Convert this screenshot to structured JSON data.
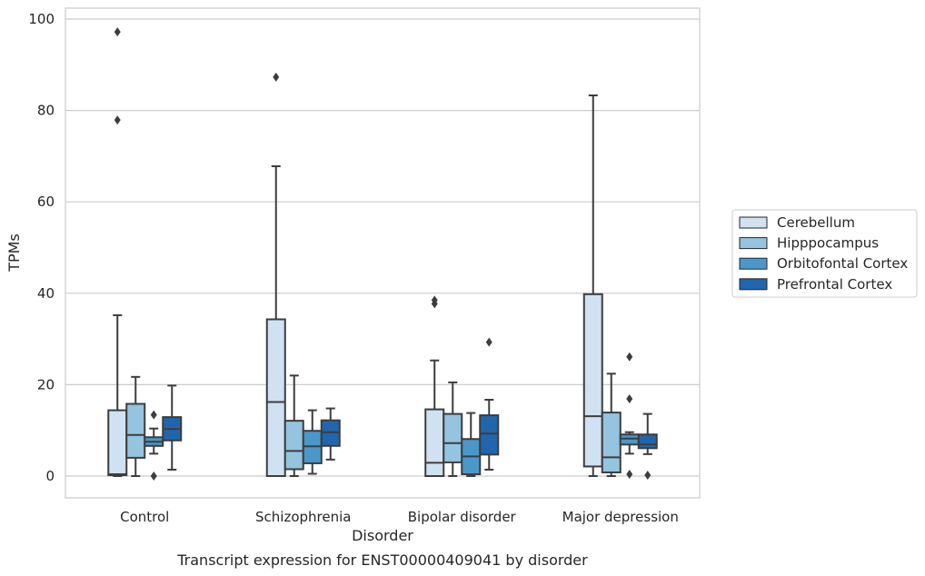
{
  "chart_data": {
    "type": "box",
    "xlabel": "Disorder",
    "ylabel": "TPMs",
    "caption": "Transcript expression for ENST00000409041 by disorder",
    "ylim": [
      -4.5,
      102
    ],
    "yticks": [
      0,
      20,
      40,
      60,
      80,
      100
    ],
    "grid": "horizontal",
    "legend_position": "center-right",
    "categories": [
      "Control",
      "Schizophrenia",
      "Bipolar disorder",
      "Major depression"
    ],
    "series": [
      {
        "name": "Cerebellum",
        "color": "#d0e1f2",
        "boxes": [
          {
            "whislo": 0,
            "q1": 0.2,
            "med": 0.4,
            "q3": 14.4,
            "whishi": 35.2,
            "fliers": [
              77.9,
              97.2
            ]
          },
          {
            "whislo": 0,
            "q1": 0,
            "med": 16.2,
            "q3": 34.3,
            "whishi": 67.8,
            "fliers": [
              87.3
            ]
          },
          {
            "whislo": 0,
            "q1": 0,
            "med": 2.9,
            "q3": 14.6,
            "whishi": 25.3,
            "fliers": [
              37.7,
              38.5
            ]
          },
          {
            "whislo": 0,
            "q1": 2.1,
            "med": 13.1,
            "q3": 39.8,
            "whishi": 83.3,
            "fliers": []
          }
        ]
      },
      {
        "name": "Hipppocampus",
        "color": "#94c4df",
        "boxes": [
          {
            "whislo": 0,
            "q1": 4.0,
            "med": 9.0,
            "q3": 15.8,
            "whishi": 21.7,
            "fliers": []
          },
          {
            "whislo": 0,
            "q1": 1.5,
            "med": 5.5,
            "q3": 12.1,
            "whishi": 22.0,
            "fliers": []
          },
          {
            "whislo": 0,
            "q1": 3.0,
            "med": 7.2,
            "q3": 13.6,
            "whishi": 20.5,
            "fliers": []
          },
          {
            "whislo": 0,
            "q1": 0.8,
            "med": 4.1,
            "q3": 13.9,
            "whishi": 22.4,
            "fliers": []
          }
        ]
      },
      {
        "name": "Orbitofontal Cortex",
        "color": "#4a98c9",
        "boxes": [
          {
            "whislo": 4.9,
            "q1": 6.6,
            "med": 7.5,
            "q3": 8.5,
            "whishi": 10.4,
            "fliers": [
              0,
              13.4
            ]
          },
          {
            "whislo": 0.5,
            "q1": 2.8,
            "med": 6.5,
            "q3": 9.9,
            "whishi": 14.4,
            "fliers": []
          },
          {
            "whislo": 0,
            "q1": 0.4,
            "med": 4.3,
            "q3": 8.1,
            "whishi": 13.8,
            "fliers": []
          },
          {
            "whislo": 4.9,
            "q1": 6.9,
            "med": 8.2,
            "q3": 9.1,
            "whishi": 9.6,
            "fliers": [
              0.4,
              16.9,
              26.1
            ]
          }
        ]
      },
      {
        "name": "Prefrontal Cortex",
        "color": "#2166ac",
        "boxes": [
          {
            "whislo": 1.4,
            "q1": 7.8,
            "med": 10.3,
            "q3": 12.9,
            "whishi": 19.8,
            "fliers": []
          },
          {
            "whislo": 3.6,
            "q1": 6.6,
            "med": 9.6,
            "q3": 12.2,
            "whishi": 14.8,
            "fliers": []
          },
          {
            "whislo": 1.4,
            "q1": 4.7,
            "med": 9.3,
            "q3": 13.3,
            "whishi": 16.7,
            "fliers": [
              29.3
            ]
          },
          {
            "whislo": 4.8,
            "q1": 6.1,
            "med": 6.9,
            "q3": 9.1,
            "whishi": 13.6,
            "fliers": [
              0.2
            ]
          }
        ]
      }
    ]
  }
}
